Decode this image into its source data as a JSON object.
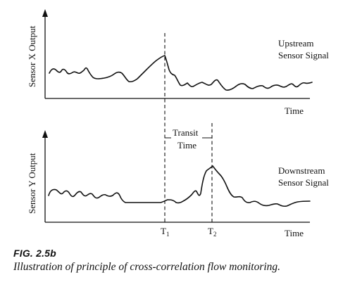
{
  "figure": {
    "label": "FIG. 2.5b",
    "caption": "Illustration of principle of cross-correlation flow monitoring."
  },
  "top_panel": {
    "ylabel": "Sensor X Output",
    "xlabel": "Time",
    "legend_line1": "Upstream",
    "legend_line2": "Sensor Signal"
  },
  "bottom_panel": {
    "ylabel": "Sensor Y Output",
    "xlabel": "Time",
    "legend_line1": "Downstream",
    "legend_line2": "Sensor Signal"
  },
  "annotation": {
    "line1": "Transit",
    "line2": "Time"
  },
  "ticks": {
    "t1_base": "T",
    "t1_sub": "1",
    "t2_base": "T",
    "t2_sub": "2"
  }
}
